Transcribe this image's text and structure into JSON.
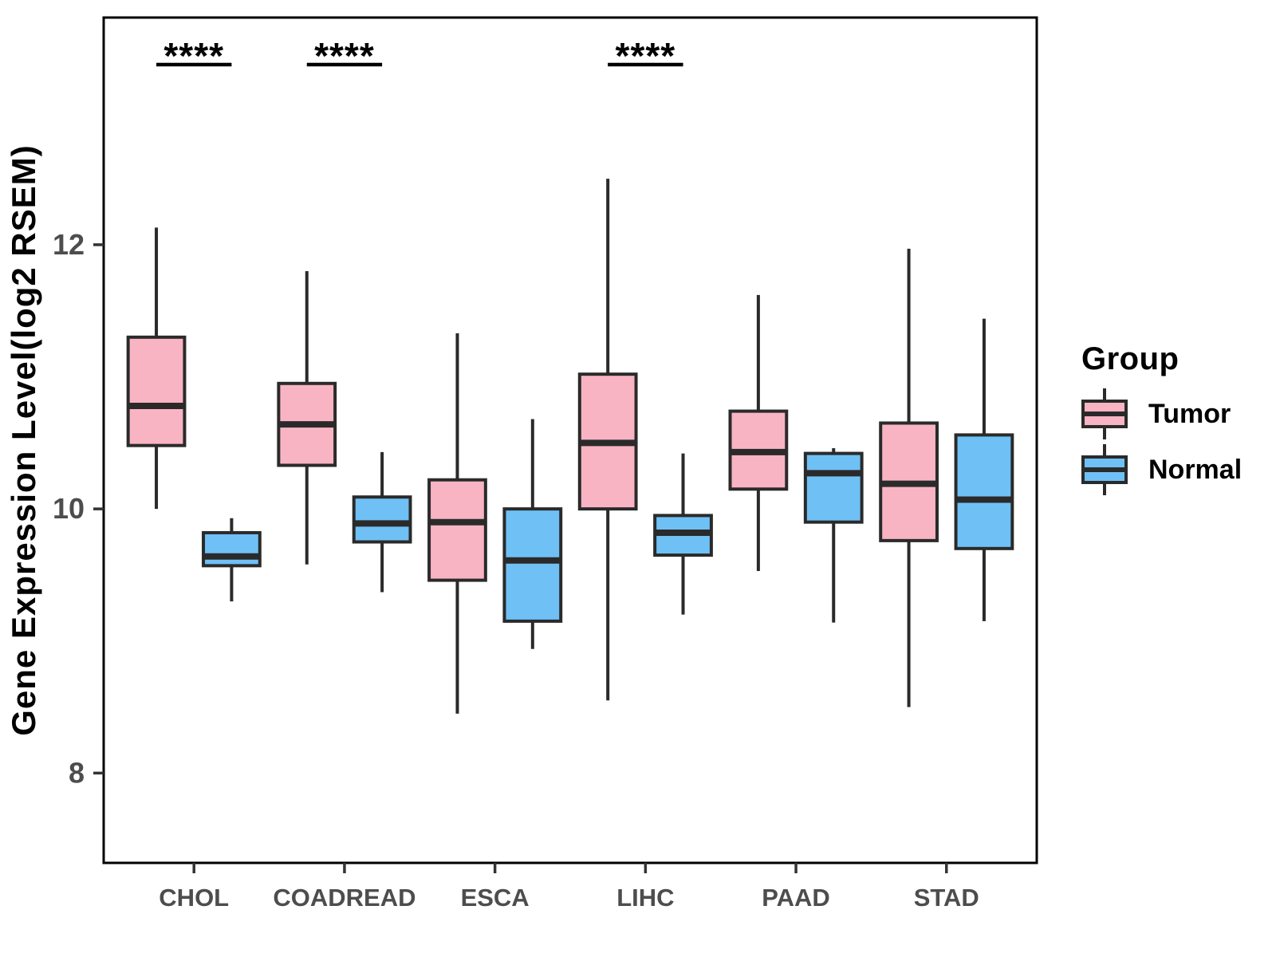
{
  "chart_data": {
    "type": "boxplot",
    "title": "",
    "ylabel": "Gene Expression Level(log2 RSEM)",
    "xlabel": "",
    "categories": [
      "CHOL",
      "COADREAD",
      "ESCA",
      "LIHC",
      "PAAD",
      "STAD"
    ],
    "series": [
      {
        "name": "Tumor",
        "color": "#F9B4C4",
        "boxes": [
          {
            "low": 10.0,
            "q1": 10.48,
            "median": 10.78,
            "q3": 11.3,
            "high": 12.13
          },
          {
            "low": 9.58,
            "q1": 10.33,
            "median": 10.64,
            "q3": 10.95,
            "high": 11.8
          },
          {
            "low": 8.45,
            "q1": 9.46,
            "median": 9.9,
            "q3": 10.22,
            "high": 11.33
          },
          {
            "low": 8.55,
            "q1": 10.0,
            "median": 10.5,
            "q3": 11.02,
            "high": 12.5
          },
          {
            "low": 9.53,
            "q1": 10.15,
            "median": 10.43,
            "q3": 10.74,
            "high": 11.62
          },
          {
            "low": 8.5,
            "q1": 9.76,
            "median": 10.19,
            "q3": 10.65,
            "high": 11.97
          }
        ]
      },
      {
        "name": "Normal",
        "color": "#6FC0F5",
        "boxes": [
          {
            "low": 9.3,
            "q1": 9.57,
            "median": 9.64,
            "q3": 9.82,
            "high": 9.93
          },
          {
            "low": 9.37,
            "q1": 9.75,
            "median": 9.89,
            "q3": 10.09,
            "high": 10.43
          },
          {
            "low": 8.94,
            "q1": 9.15,
            "median": 9.61,
            "q3": 10.0,
            "high": 10.68
          },
          {
            "low": 9.2,
            "q1": 9.65,
            "median": 9.82,
            "q3": 9.95,
            "high": 10.42
          },
          {
            "low": 9.14,
            "q1": 9.9,
            "median": 10.27,
            "q3": 10.42,
            "high": 10.46
          },
          {
            "low": 9.15,
            "q1": 9.7,
            "median": 10.07,
            "q3": 10.56,
            "high": 11.44
          }
        ]
      }
    ],
    "yticks": [
      8,
      10,
      12
    ],
    "ylim": [
      7.32,
      13.72
    ],
    "grid": false,
    "legend_position": "right",
    "significance": [
      {
        "category": "CHOL",
        "label": "****"
      },
      {
        "category": "COADREAD",
        "label": "****"
      },
      {
        "category": "LIHC",
        "label": "****"
      }
    ]
  },
  "legend": {
    "title": "Group",
    "items": [
      {
        "label": "Tumor"
      },
      {
        "label": "Normal"
      }
    ]
  },
  "style": {
    "box_stroke": "#2A2A2A",
    "axis_text_color": "#4D4D4D",
    "tick_color": "#333333",
    "panel_border": "#000000",
    "sig_color": "#000000"
  }
}
